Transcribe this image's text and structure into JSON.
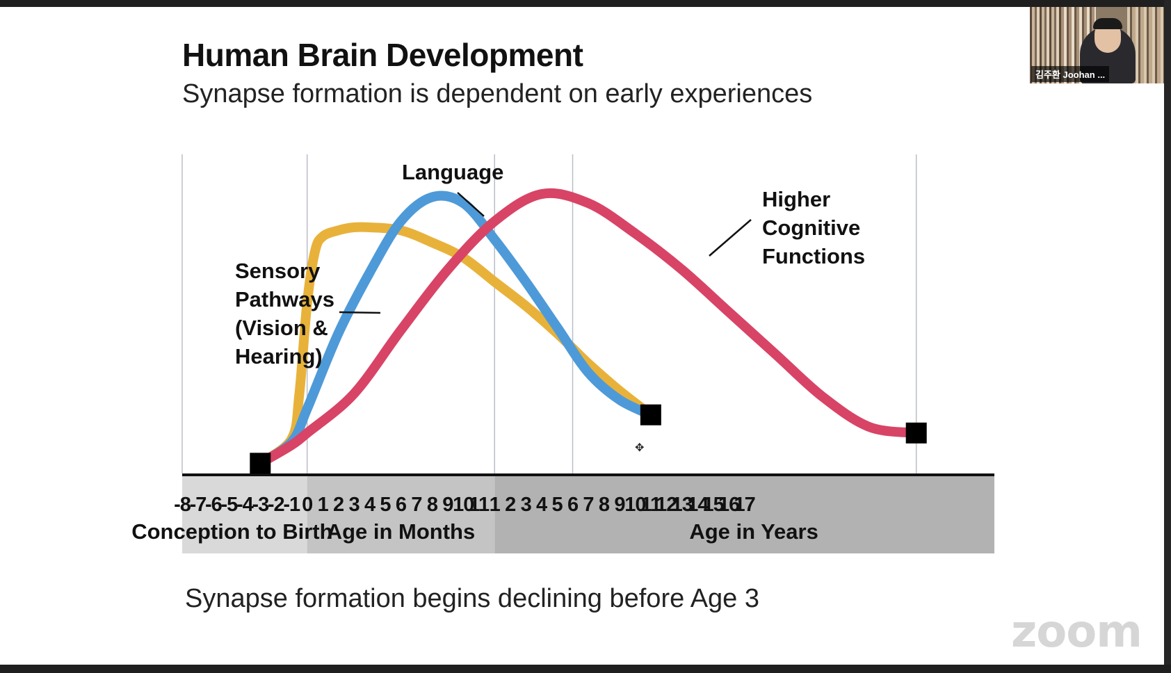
{
  "slide": {
    "title": "Human Brain Development",
    "subtitle": "Synapse formation is dependent on early experiences",
    "footer": "Synapse formation begins declining before Age 3"
  },
  "participant": {
    "name": "김주환 Joohan ..."
  },
  "watermark": "zoom",
  "cursor_icon": "move-cursor-icon",
  "chart_data": {
    "type": "line",
    "x_ticks": [
      "-8",
      "-7",
      "-6",
      "-5",
      "-4",
      "-3",
      "-2",
      "-1",
      "0",
      "1",
      "2",
      "3",
      "4",
      "5",
      "6",
      "7",
      "8",
      "9",
      "10",
      "11",
      "1",
      "2",
      "3",
      "4",
      "5",
      "6",
      "7",
      "8",
      "9",
      "10",
      "11",
      "12",
      "13",
      "14",
      "15",
      "16",
      "17"
    ],
    "x_groups": [
      "Conception to Birth",
      "Age in Months",
      "Age in Years"
    ],
    "series": [
      {
        "name": "Sensory Pathways (Vision & Hearing)",
        "label_lines": [
          "Sensory",
          "Pathways",
          "(Vision &",
          "Hearing)"
        ],
        "color": "#e8b23a",
        "x": [
          -3,
          -1,
          -0.5,
          0,
          0.5,
          1,
          2,
          3,
          4,
          6,
          8,
          10,
          12,
          14,
          16,
          18,
          20,
          22
        ],
        "y": [
          2,
          10,
          25,
          55,
          72,
          77,
          79,
          80,
          80,
          79,
          75,
          70,
          62,
          54,
          45,
          35,
          26,
          18
        ]
      },
      {
        "name": "Language",
        "label_lines": [
          "Language"
        ],
        "color": "#4e9ad8",
        "x": [
          -3,
          -1,
          0,
          2,
          4,
          6,
          8,
          10,
          12,
          14,
          16,
          18,
          20,
          22
        ],
        "y": [
          2,
          9,
          20,
          45,
          65,
          82,
          90,
          88,
          76,
          62,
          47,
          32,
          23,
          18
        ]
      },
      {
        "name": "Higher Cognitive Functions",
        "label_lines": [
          "Higher",
          "Cognitive",
          "Functions"
        ],
        "color": "#d84466",
        "x": [
          -3,
          -1,
          0,
          3,
          6,
          9,
          12,
          15,
          18,
          21,
          24,
          27,
          30,
          33,
          36,
          39
        ],
        "y": [
          2,
          8,
          12,
          25,
          46,
          66,
          82,
          91,
          88,
          78,
          66,
          52,
          38,
          24,
          14,
          12
        ]
      }
    ],
    "endpoints": [
      {
        "x": -3,
        "y": 2
      },
      {
        "x": 22,
        "y": 18
      },
      {
        "x": 39,
        "y": 12
      }
    ],
    "grid_x": [
      -8,
      0,
      12,
      17,
      39
    ],
    "grid": true,
    "legend": "none",
    "xlim": [
      -8,
      44
    ],
    "ylim": [
      0,
      100
    ]
  }
}
